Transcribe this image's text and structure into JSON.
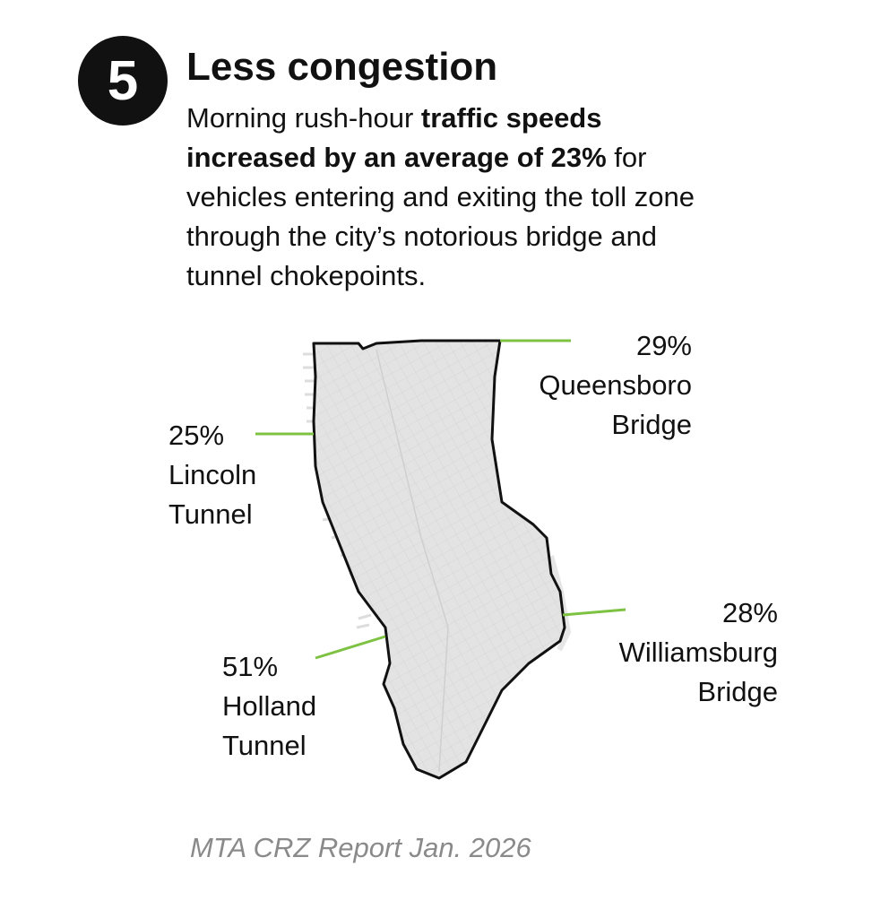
{
  "step": "5",
  "title": "Less congestion",
  "description": [
    "Morning rush-hour ",
    "traffic speeds increased by an average of 23%",
    " for vehicles entering and exiting the toll zone through the city’s notorious bridge and tunnel chokepoints."
  ],
  "crossings": [
    {
      "change": "29%",
      "name": "Queensboro Bridge"
    },
    {
      "change": "25%",
      "name": "Lincoln Tunnel"
    },
    {
      "change": "28%",
      "name": "Williamsburg Bridge"
    },
    {
      "change": "51%",
      "name": "Holland Tunnel"
    }
  ],
  "source": "MTA CRZ Report Jan. 2026"
}
